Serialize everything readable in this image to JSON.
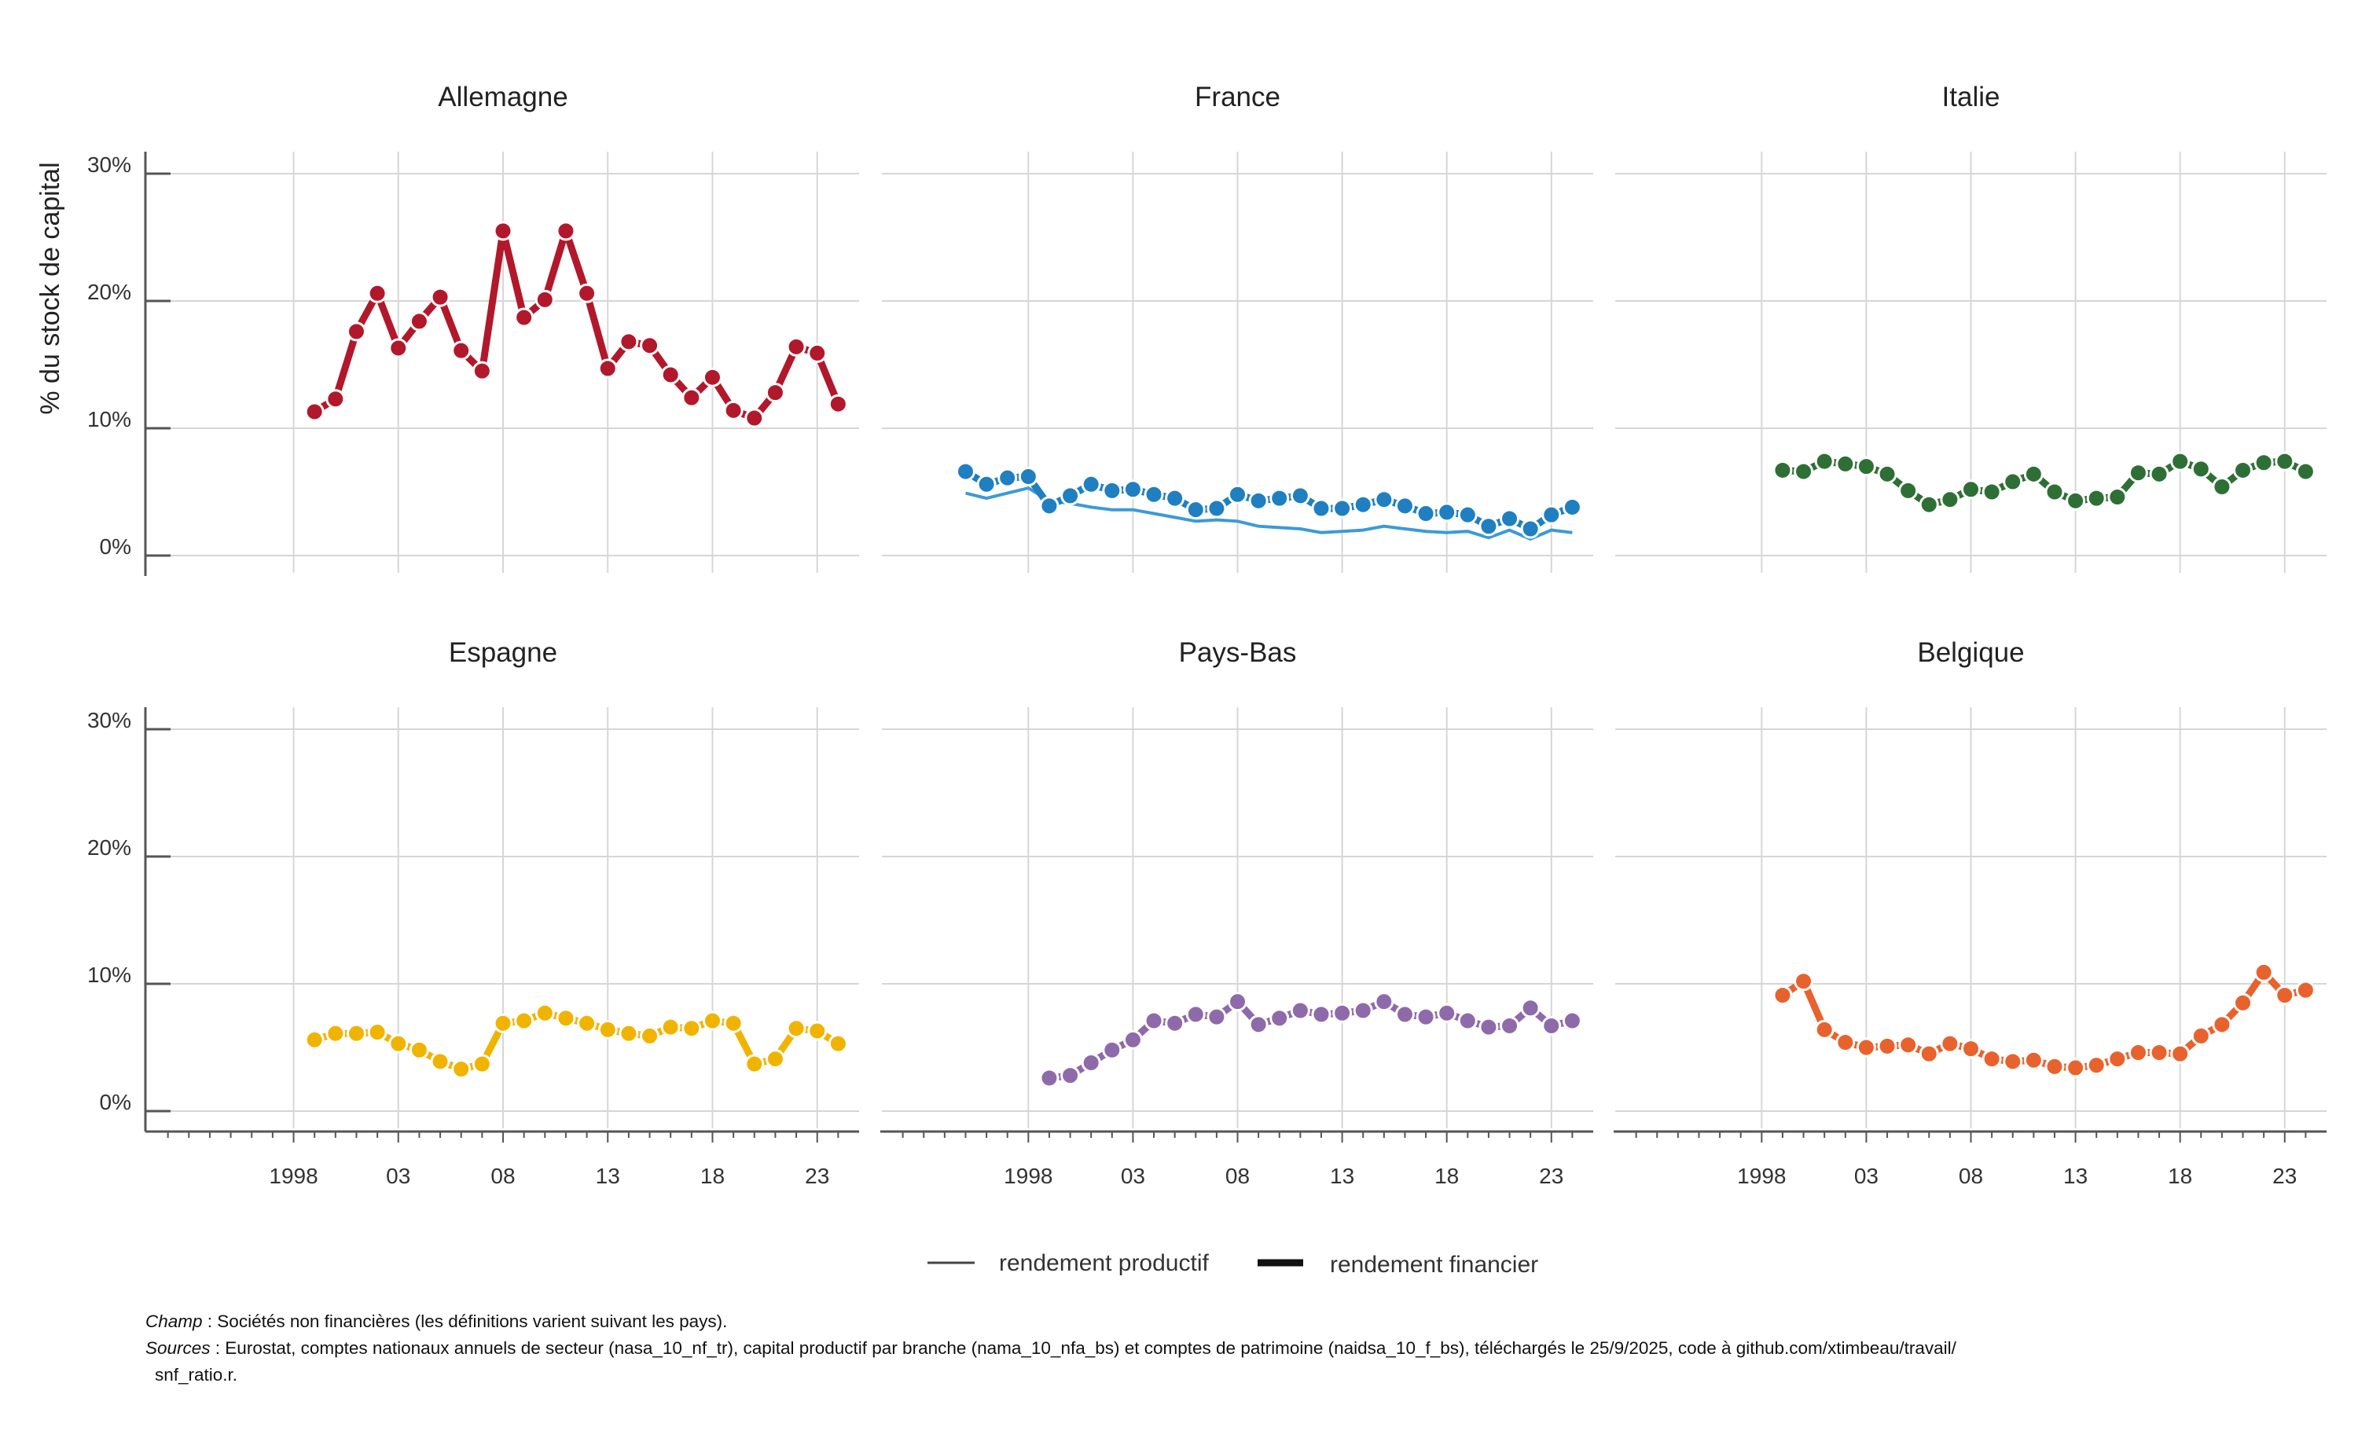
{
  "chart_data": {
    "type": "line",
    "y_axis_label": "% du stock de capital",
    "y_ticks": [
      "0%",
      "10%",
      "20%",
      "30%"
    ],
    "ylim": [
      0,
      30
    ],
    "xlim": [
      1991,
      2025
    ],
    "x_ticks": [
      {
        "year": 1998,
        "label": "1998"
      },
      {
        "year": 2003,
        "label": "03"
      },
      {
        "year": 2008,
        "label": "08"
      },
      {
        "year": 2013,
        "label": "13"
      },
      {
        "year": 2018,
        "label": "18"
      },
      {
        "year": 2023,
        "label": "23"
      }
    ],
    "grid": true,
    "legend": {
      "placement": "bottom",
      "items": [
        {
          "label": "rendement productif",
          "style": "thin"
        },
        {
          "label": "rendement financier",
          "style": "thick"
        }
      ]
    },
    "panels": [
      {
        "name": "Allemagne",
        "color": "#b2182b",
        "series": [
          {
            "kind": "financier",
            "x_start": 1999,
            "values": [
              11.3,
              12.3,
              17.6,
              20.6,
              16.3,
              18.4,
              20.3,
              16.1,
              14.5,
              25.5,
              18.7,
              20.1,
              25.5,
              20.6,
              14.7,
              16.8,
              16.5,
              14.2,
              12.4,
              14.0,
              11.4,
              10.8,
              12.8,
              16.4,
              15.9,
              11.9
            ]
          }
        ]
      },
      {
        "name": "France",
        "color": "#1f7fc0",
        "productif_color": "#3d9ad6",
        "series": [
          {
            "kind": "financier",
            "x_start": 1995,
            "values": [
              6.6,
              5.6,
              6.1,
              6.2,
              3.9,
              4.7,
              5.6,
              5.1,
              5.2,
              4.8,
              4.5,
              3.6,
              3.7,
              4.8,
              4.3,
              4.5,
              4.7,
              3.7,
              3.7,
              4.0,
              4.4,
              3.9,
              3.3,
              3.4,
              3.2,
              2.3,
              2.9,
              2.1,
              3.2,
              3.8
            ]
          },
          {
            "kind": "productif",
            "x_start": 1995,
            "values": [
              4.9,
              4.5,
              4.9,
              5.3,
              4.3,
              4.1,
              3.8,
              3.6,
              3.6,
              3.3,
              3.0,
              2.7,
              2.8,
              2.7,
              2.3,
              2.2,
              2.1,
              1.8,
              1.9,
              2.0,
              2.3,
              2.1,
              1.9,
              1.8,
              1.9,
              1.4,
              2.0,
              1.3,
              2.0,
              1.8
            ]
          }
        ]
      },
      {
        "name": "Italie",
        "color": "#2e6f35",
        "series": [
          {
            "kind": "financier",
            "x_start": 1999,
            "values": [
              6.7,
              6.6,
              7.4,
              7.2,
              7.0,
              6.4,
              5.1,
              4.0,
              4.4,
              5.2,
              5.0,
              5.8,
              6.4,
              5.0,
              4.3,
              4.5,
              4.6,
              6.5,
              6.4,
              7.4,
              6.8,
              5.4,
              6.7,
              7.3,
              7.4,
              6.6
            ]
          }
        ]
      },
      {
        "name": "Espagne",
        "color": "#f0b400",
        "series": [
          {
            "kind": "financier",
            "x_start": 1999,
            "values": [
              5.6,
              6.1,
              6.1,
              6.2,
              5.3,
              4.8,
              3.9,
              3.3,
              3.7,
              6.9,
              7.1,
              7.7,
              7.3,
              6.9,
              6.4,
              6.1,
              5.9,
              6.6,
              6.5,
              7.1,
              6.9,
              3.7,
              4.1,
              6.5,
              6.3,
              5.3
            ]
          }
        ]
      },
      {
        "name": "Pays-Bas",
        "color": "#8e6aab",
        "series": [
          {
            "kind": "financier",
            "x_start": 1999,
            "values": [
              2.6,
              2.8,
              3.8,
              4.8,
              5.6,
              7.1,
              6.9,
              7.6,
              7.4,
              8.6,
              6.8,
              7.3,
              7.9,
              7.6,
              7.7,
              7.9,
              8.6,
              7.6,
              7.4,
              7.7,
              7.1,
              6.6,
              6.7,
              8.1,
              6.7,
              7.1
            ]
          }
        ]
      },
      {
        "name": "Belgique",
        "color": "#e8622e",
        "series": [
          {
            "kind": "financier",
            "x_start": 1999,
            "values": [
              9.1,
              10.2,
              6.4,
              5.4,
              5.0,
              5.1,
              5.2,
              4.5,
              5.3,
              4.9,
              4.1,
              3.9,
              4.0,
              3.5,
              3.4,
              3.6,
              4.1,
              4.6,
              4.6,
              4.5,
              5.9,
              6.8,
              8.5,
              10.9,
              9.1,
              9.5
            ]
          }
        ]
      }
    ]
  },
  "footnote": {
    "champ_label": "Champ",
    "champ_text": " : Sociétés non financières (les définitions varient suivant les pays).",
    "sources_label": "Sources",
    "sources_text": " : Eurostat, comptes nationaux annuels de secteur (nasa_10_nf_tr), capital productif par branche (nama_10_nfa_bs) et comptes de patrimoine (naidsa_10_f_bs), téléchargés le 25/9/2025, code à github.com/xtimbeau/travail/",
    "sources_text_2": "snf_ratio.r."
  }
}
